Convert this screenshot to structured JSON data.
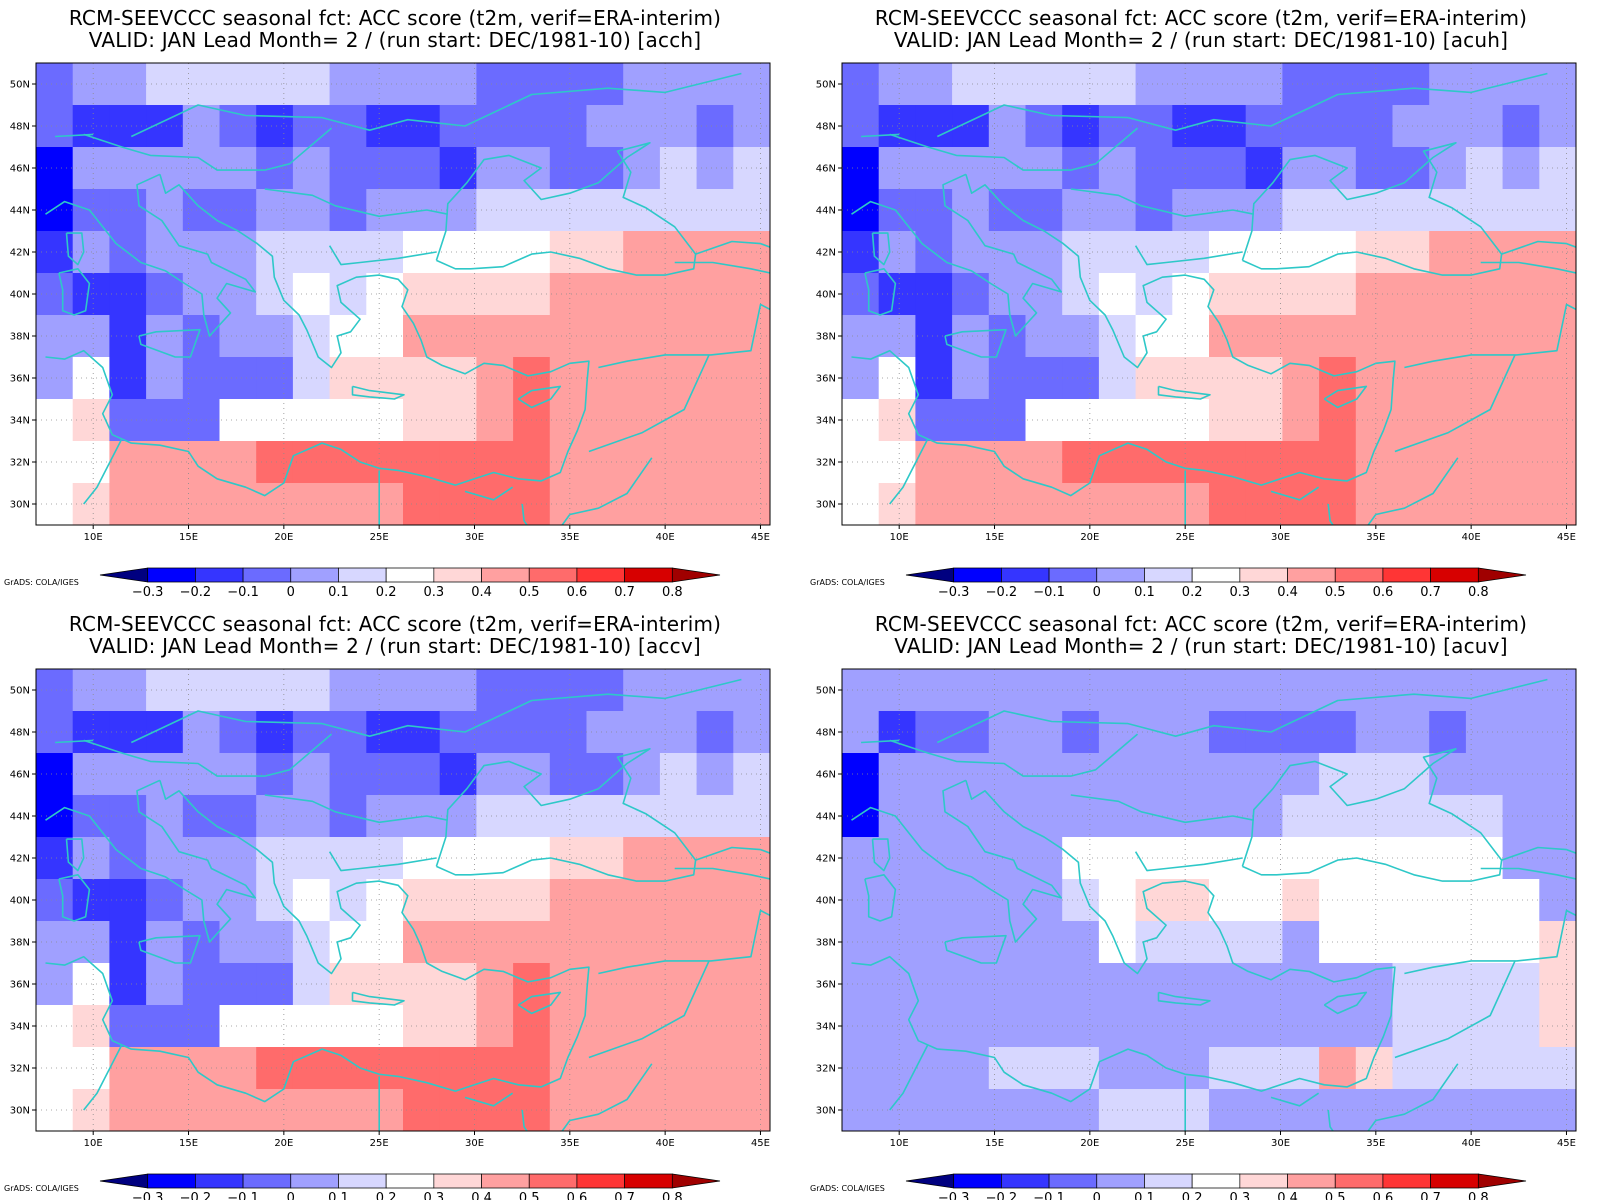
{
  "layout_grid": "2x2",
  "colorbar": {
    "colors": [
      "#000080",
      "#0000ff",
      "#3535ff",
      "#6b6bff",
      "#a0a0ff",
      "#d7d7ff",
      "#ffffff",
      "#ffd7d7",
      "#ffa0a0",
      "#ff6b6b",
      "#ff3535",
      "#d70000",
      "#a00000"
    ],
    "tick_labels": [
      "−0.3",
      "−0.2",
      "−0.1",
      "0",
      "0.1",
      "0.2",
      "0.3",
      "0.4",
      "0.5",
      "0.6",
      "0.7",
      "0.8"
    ],
    "credit": "GrADS: COLA/IGES"
  },
  "coastline_color": "#2ec8c8",
  "chart_data": [
    {
      "type": "heatmap",
      "title_line1": "RCM-SEEVCCC seasonal fct: ACC score (t2m, verif=ERA-interim)",
      "title_line2": "VALID: JAN Lead Month= 2 / (run start: DEC/1981-10) [acch]",
      "x_ticks": [
        "10E",
        "15E",
        "20E",
        "25E",
        "30E",
        "35E",
        "40E",
        "45E"
      ],
      "y_ticks": [
        "50N",
        "48N",
        "46N",
        "44N",
        "42N",
        "40N",
        "38N",
        "36N",
        "34N",
        "32N",
        "30N"
      ],
      "lon_range": [
        7,
        45.5
      ],
      "lat_range": [
        29,
        51
      ],
      "grid_lines": true,
      "levels": [
        -0.3,
        -0.2,
        -0.1,
        0,
        0.1,
        0.2,
        0.3,
        0.4,
        0.5,
        0.6,
        0.7,
        0.8
      ],
      "cell_classes_rows_north_to_south": [
        "34455555444433334444",
        "32224323322333344434",
        "14444434333244334545",
        "13343344344455555555",
        "24344455556666778888",
        "32234456567777888888",
        "44243445668888888888",
        "46243335777789888888",
        "67333666667789888888",
        "66888899999999888888",
        "67888888889999888888"
      ]
    },
    {
      "type": "heatmap",
      "title_line1": "RCM-SEEVCCC seasonal fct: ACC score (t2m, verif=ERA-interim)",
      "title_line2": "VALID: JAN Lead Month= 2 / (run start: DEC/1981-10) [acuh]",
      "x_ticks": [
        "10E",
        "15E",
        "20E",
        "25E",
        "30E",
        "35E",
        "40E",
        "45E"
      ],
      "y_ticks": [
        "50N",
        "48N",
        "46N",
        "44N",
        "42N",
        "40N",
        "38N",
        "36N",
        "34N",
        "32N",
        "30N"
      ],
      "lon_range": [
        7,
        45.5
      ],
      "lat_range": [
        29,
        51
      ],
      "grid_lines": true,
      "levels": [
        -0.3,
        -0.2,
        -0.1,
        0,
        0.1,
        0.2,
        0.3,
        0.4,
        0.5,
        0.6,
        0.7,
        0.8
      ],
      "cell_classes_rows_north_to_south": [
        "34455555444433334444",
        "32224323322333344434",
        "14444434333244334545",
        "13343344344455555555",
        "24344455556666778888",
        "32234456567777888888",
        "44243445668888888888",
        "46243335777789888888",
        "67333666667789888888",
        "66888899999999888888",
        "67888888889999888888"
      ]
    },
    {
      "type": "heatmap",
      "title_line1": "RCM-SEEVCCC seasonal fct: ACC score (t2m, verif=ERA-interim)",
      "title_line2": "VALID: JAN Lead Month= 2 / (run start: DEC/1981-10) [accv]",
      "x_ticks": [
        "10E",
        "15E",
        "20E",
        "25E",
        "30E",
        "35E",
        "40E",
        "45E"
      ],
      "y_ticks": [
        "50N",
        "48N",
        "46N",
        "44N",
        "42N",
        "40N",
        "38N",
        "36N",
        "34N",
        "32N",
        "30N"
      ],
      "lon_range": [
        7,
        45.5
      ],
      "lat_range": [
        29,
        51
      ],
      "grid_lines": true,
      "levels": [
        -0.3,
        -0.2,
        -0.1,
        0,
        0.1,
        0.2,
        0.3,
        0.4,
        0.5,
        0.6,
        0.7,
        0.8
      ],
      "cell_classes_rows_north_to_south": [
        "34455555444433334444",
        "32224323322333344434",
        "14444434333244334545",
        "13343344344455555555",
        "24344455556666778888",
        "32234456567777888888",
        "44243445668888888888",
        "46243335777789888888",
        "67333666667789888888",
        "66888899999999888888",
        "67888888889999888888"
      ]
    },
    {
      "type": "heatmap",
      "title_line1": "RCM-SEEVCCC seasonal fct: ACC score (t2m, verif=ERA-interim)",
      "title_line2": "VALID: JAN Lead Month= 2 / (run start: DEC/1981-10) [acuv]",
      "x_ticks": [
        "10E",
        "15E",
        "20E",
        "25E",
        "30E",
        "35E",
        "40E",
        "45E"
      ],
      "y_ticks": [
        "50N",
        "48N",
        "46N",
        "44N",
        "42N",
        "40N",
        "38N",
        "36N",
        "34N",
        "32N",
        "30N"
      ],
      "lon_range": [
        7,
        45.5
      ],
      "lat_range": [
        29,
        51
      ],
      "grid_lines": true,
      "levels": [
        -0.3,
        -0.2,
        -0.1,
        0,
        0.1,
        0.2,
        0.3,
        0.4,
        0.5,
        0.6,
        0.7,
        0.8
      ],
      "cell_classes_rows_north_to_south": [
        "44444444444444444444",
        "42334434443333443444",
        "14444444444445554444",
        "14444444444455555544",
        "44444466666666666644",
        "44444456776676666664",
        "44444446555546666667",
        "44444444444444455557",
        "44444444444444455557",
        "44445554445558755555",
        "44444445554444444444"
      ]
    }
  ]
}
